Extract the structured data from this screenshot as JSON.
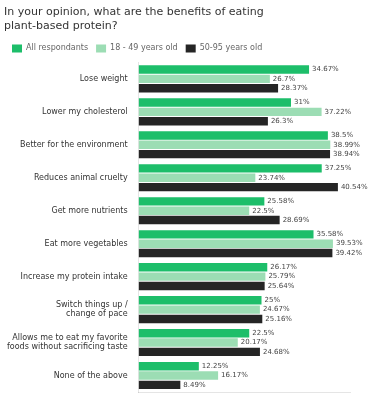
{
  "chart_data": {
    "type": "bar",
    "orientation": "horizontal",
    "title": "In your opinion, what are the benefits of eating\nplant-based protein?",
    "categories": [
      "Lose weight",
      "Lower my cholesterol",
      "Better for the environment",
      "Reduces animal cruelty",
      "Get more nutrients",
      "Eat more vegetables",
      "Increase my protein intake",
      "Switch things up /\nchange of pace",
      "Allows me to eat my favorite\nfoods without sacrificing taste",
      "None of the above"
    ],
    "series": [
      {
        "name": "All respondants",
        "color": "#1DBE6A",
        "values": [
          34.67,
          31.0,
          38.5,
          37.25,
          25.58,
          35.58,
          26.17,
          25.0,
          22.5,
          12.25
        ],
        "value_labels": [
          "34.67%",
          "31%",
          "38.5%",
          "37.25%",
          "25.58%",
          "35.58%",
          "26.17%",
          "25%",
          "22.5%",
          "12.25%"
        ]
      },
      {
        "name": "18 - 49 years old",
        "color": "#9CDDB4",
        "values": [
          26.7,
          37.22,
          38.99,
          23.74,
          22.5,
          39.53,
          25.79,
          24.67,
          20.17,
          16.17
        ],
        "value_labels": [
          "26.7%",
          "37.22%",
          "38.99%",
          "23.74%",
          "22.5%",
          "39.53%",
          "25.79%",
          "24.67%",
          "20.17%",
          "16.17%"
        ]
      },
      {
        "name": "50-95 years old",
        "color": "#252525",
        "values": [
          28.37,
          26.3,
          38.94,
          40.54,
          28.69,
          39.42,
          25.64,
          25.16,
          24.68,
          8.49
        ],
        "value_labels": [
          "28.37%",
          "26.3%",
          "38.94%",
          "40.54%",
          "28.69%",
          "39.42%",
          "25.64%",
          "25.16%",
          "24.68%",
          "8.49%"
        ]
      }
    ],
    "xlim": [
      0,
      43
    ],
    "tick_labels": "y",
    "grid": false,
    "legend": "top",
    "data_labels": true
  }
}
